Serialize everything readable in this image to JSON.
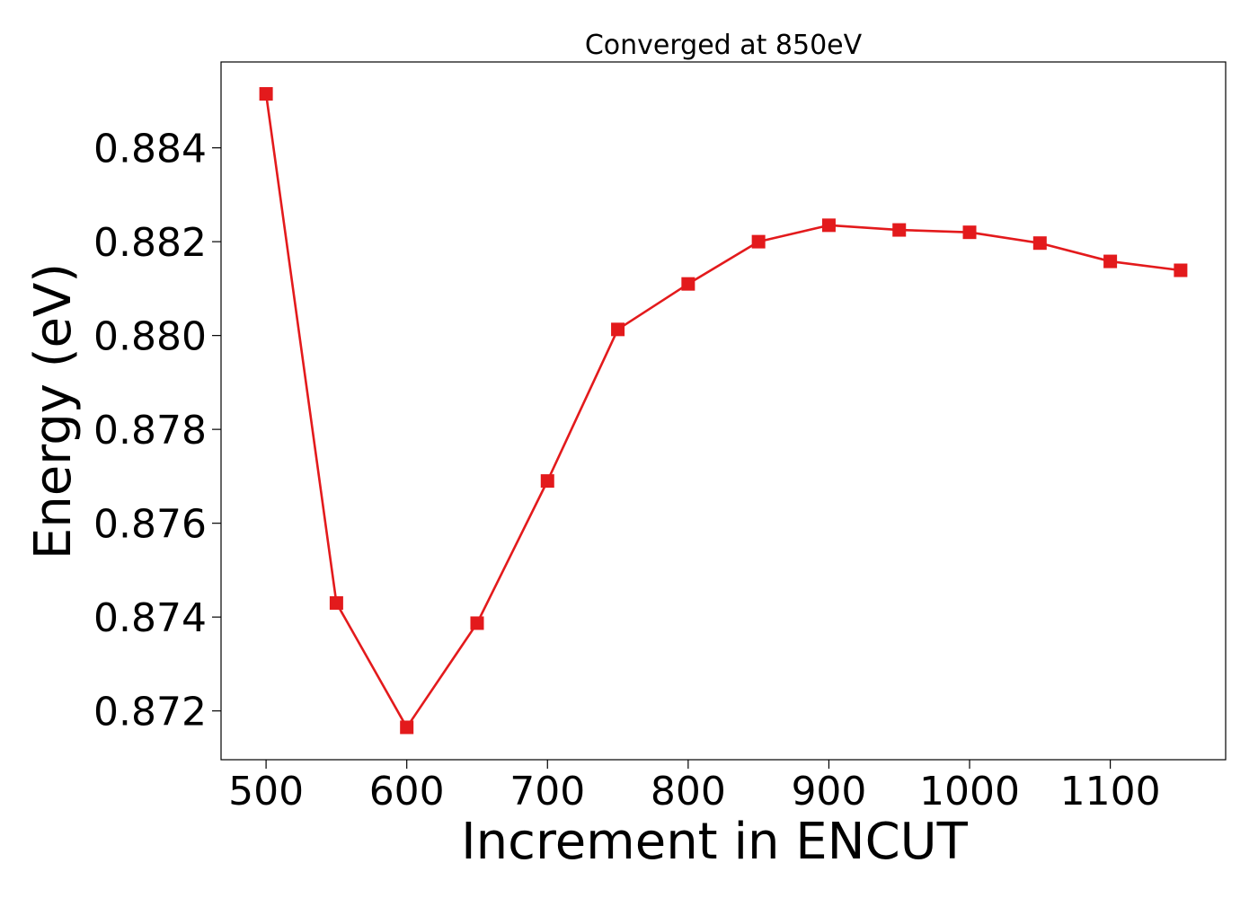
{
  "chart_data": {
    "type": "line",
    "title": "Converged at 850eV",
    "xlabel": "Increment in ENCUT",
    "ylabel": "Energy (eV)",
    "xlim": [
      468,
      1182
    ],
    "ylim": [
      0.87096,
      0.88583
    ],
    "x_ticks": [
      500,
      600,
      700,
      800,
      900,
      1000,
      1100
    ],
    "x_tick_labels": [
      "500",
      "600",
      "700",
      "800",
      "900",
      "1000",
      "1100"
    ],
    "y_ticks": [
      0.872,
      0.874,
      0.876,
      0.878,
      0.88,
      0.882,
      0.884
    ],
    "y_tick_labels": [
      "0.872",
      "0.874",
      "0.876",
      "0.878",
      "0.880",
      "0.882",
      "0.884"
    ],
    "grid": false,
    "series": [
      {
        "color": "#e31a1c",
        "marker": "square",
        "x": [
          500,
          550,
          600,
          650,
          700,
          750,
          800,
          850,
          900,
          950,
          1000,
          1050,
          1100,
          1150
        ],
        "y": [
          0.88515,
          0.8743,
          0.87165,
          0.87387,
          0.8769,
          0.88013,
          0.8811,
          0.882,
          0.88235,
          0.88225,
          0.8822,
          0.88197,
          0.88158,
          0.88139
        ]
      }
    ]
  }
}
